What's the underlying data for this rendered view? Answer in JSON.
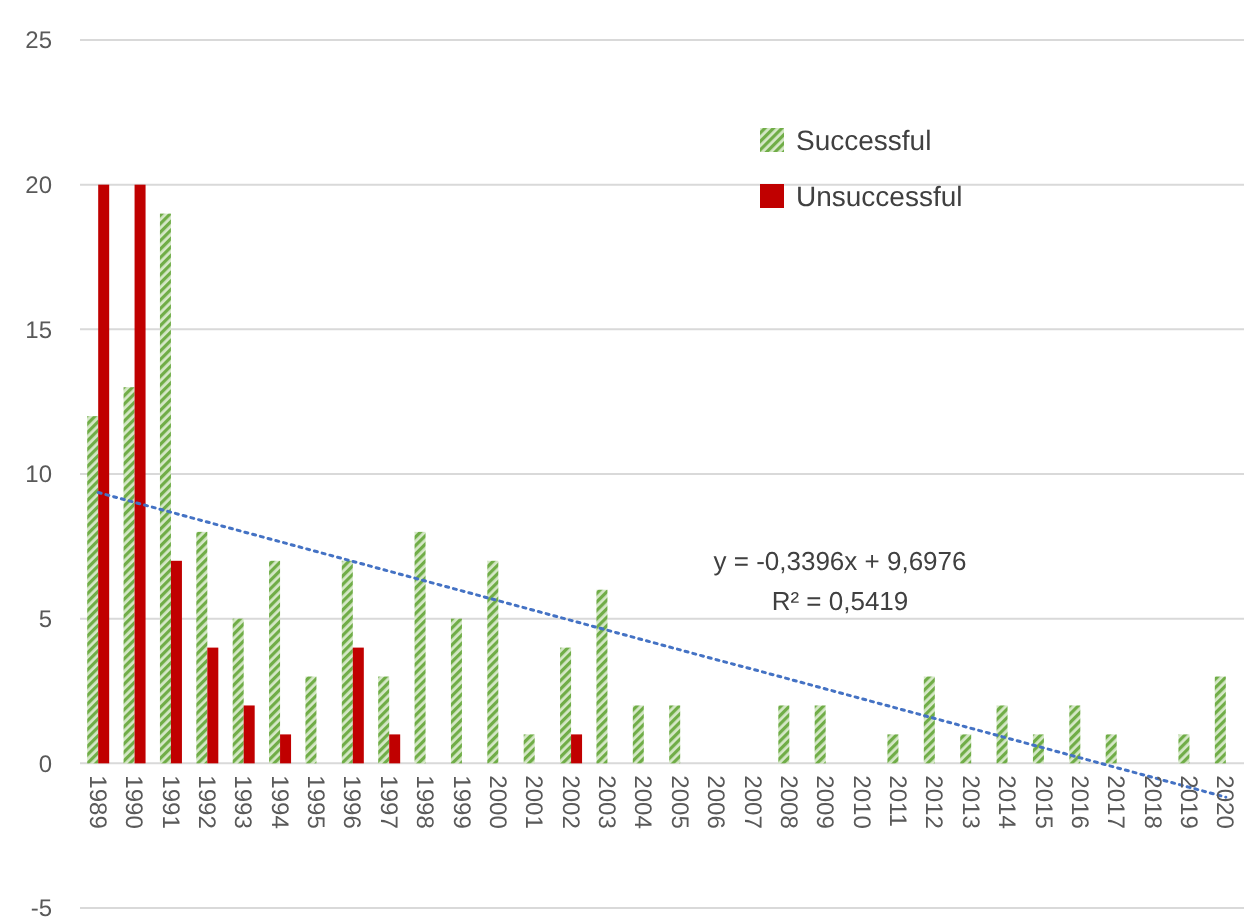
{
  "chart_data": {
    "type": "bar",
    "categories": [
      "1989",
      "1990",
      "1991",
      "1992",
      "1993",
      "1994",
      "1995",
      "1996",
      "1997",
      "1998",
      "1999",
      "2000",
      "2001",
      "2002",
      "2003",
      "2004",
      "2005",
      "2006",
      "2007",
      "2008",
      "2009",
      "2010",
      "2011",
      "2012",
      "2013",
      "2014",
      "2015",
      "2016",
      "2017",
      "2018",
      "2019",
      "2020"
    ],
    "series": [
      {
        "name": "Successful",
        "color": "#70ad47",
        "values": [
          12,
          13,
          19,
          8,
          5,
          7,
          3,
          7,
          3,
          8,
          5,
          7,
          1,
          4,
          6,
          2,
          2,
          0,
          0,
          2,
          2,
          0,
          1,
          3,
          1,
          2,
          1,
          2,
          1,
          0,
          1,
          3
        ]
      },
      {
        "name": "Unsuccessful",
        "color": "#c00000",
        "values": [
          20,
          20,
          7,
          4,
          2,
          1,
          0,
          4,
          1,
          0,
          0,
          0,
          0,
          1,
          0,
          0,
          0,
          0,
          0,
          0,
          0,
          0,
          0,
          0,
          0,
          0,
          0,
          0,
          0,
          0,
          0,
          0
        ]
      },
      {
        "type": "line",
        "color": "#4472c4",
        "line_style": "dotted",
        "marker": "none",
        "values": [
          9.36,
          9.02,
          8.68,
          8.34,
          8.0,
          7.66,
          7.32,
          6.98,
          6.64,
          6.3,
          5.96,
          5.62,
          5.28,
          4.94,
          4.6,
          4.26,
          3.92,
          3.58,
          3.25,
          2.91,
          2.57,
          2.23,
          1.89,
          1.55,
          1.21,
          0.87,
          0.53,
          0.19,
          -0.15,
          -0.49,
          -0.83,
          -1.17
        ]
      }
    ],
    "ylim": [
      -5,
      25
    ],
    "yticks": [
      -5,
      0,
      5,
      10,
      15,
      20,
      25
    ],
    "grid": "y",
    "legend": "top right",
    "annotations": [
      "y = -0,3396x + 9,6976",
      "R² = 0,5419"
    ]
  }
}
